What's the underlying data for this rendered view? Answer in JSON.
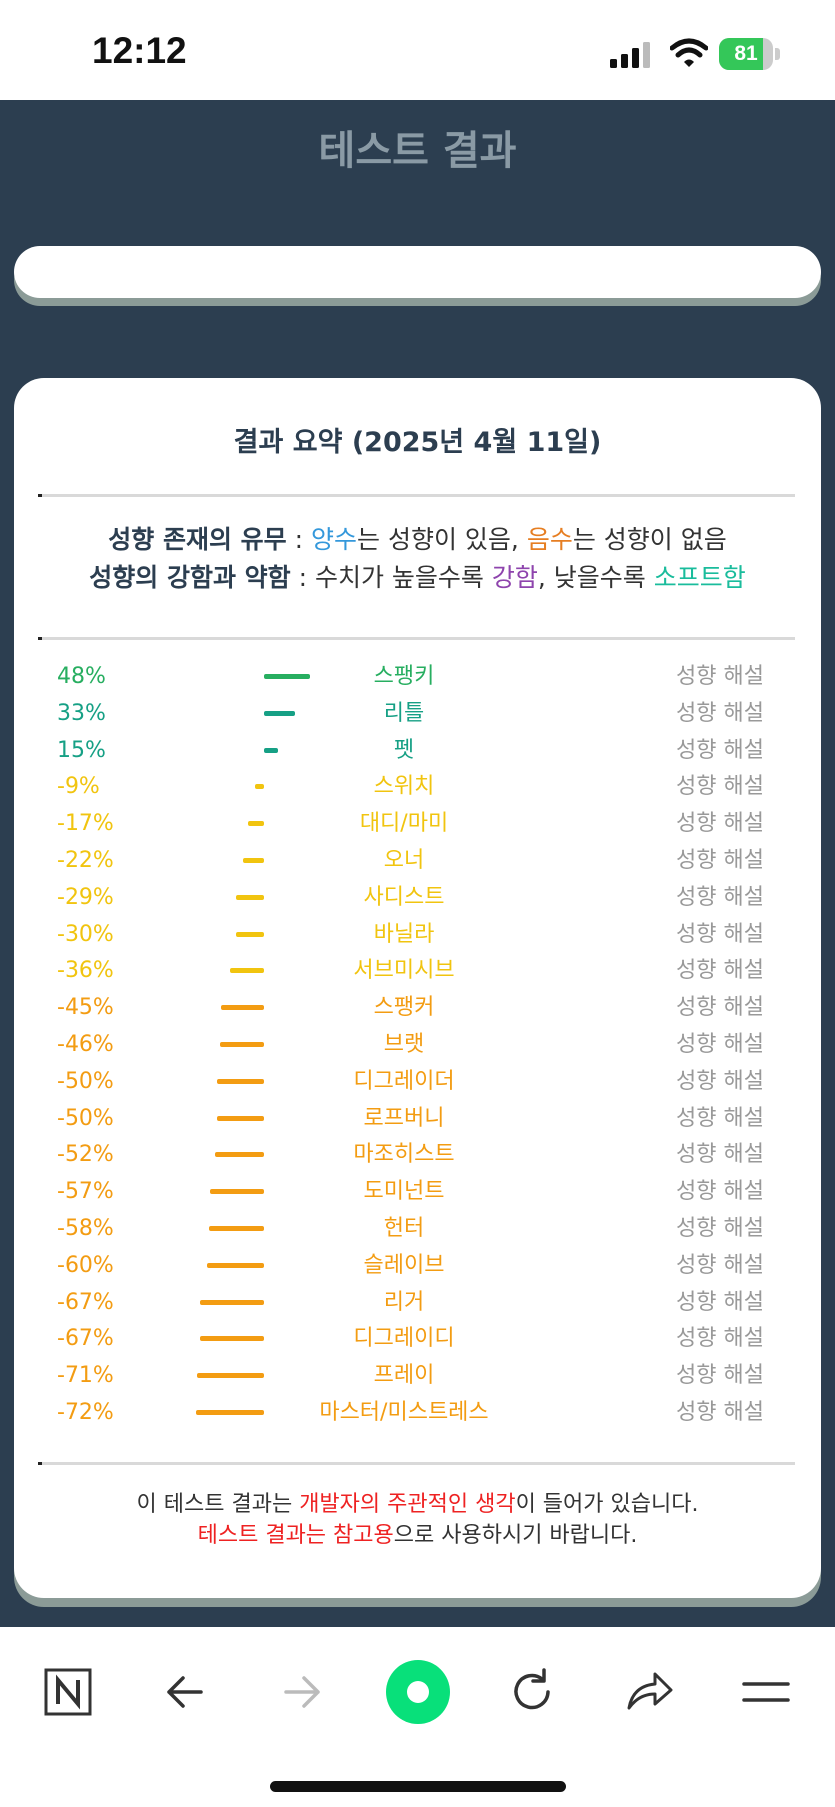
{
  "status": {
    "time": "12:12",
    "battery": "81",
    "battery_level": 0.81
  },
  "header": {
    "title": "테스트 결과"
  },
  "summary": {
    "title": "결과 요약 (2025년 4월 11일)",
    "legend1": {
      "label": "성향 존재의 유무",
      "sep": " : ",
      "pos": "양수",
      "t1": "는 성향이 있음, ",
      "neg": "음수",
      "t2": "는 성향이 없음"
    },
    "legend2": {
      "label": "성향의 강함과 약함",
      "sep": " : 수치가 높을수록 ",
      "strong": "강함",
      "t1": ", 낮을수록 ",
      "soft": "소프트함"
    }
  },
  "explain_label": "성향 해설",
  "results": [
    {
      "pct": "48%",
      "value": 48,
      "name": "스팽키",
      "color": "#27ae60"
    },
    {
      "pct": "33%",
      "value": 33,
      "name": "리틀",
      "color": "#16a085"
    },
    {
      "pct": "15%",
      "value": 15,
      "name": "펫",
      "color": "#16a085"
    },
    {
      "pct": "-9%",
      "value": -9,
      "name": "스위치",
      "color": "#f1c40f"
    },
    {
      "pct": "-17%",
      "value": -17,
      "name": "대디/마미",
      "color": "#f1c40f"
    },
    {
      "pct": "-22%",
      "value": -22,
      "name": "오너",
      "color": "#f1c40f"
    },
    {
      "pct": "-29%",
      "value": -29,
      "name": "사디스트",
      "color": "#f1c40f"
    },
    {
      "pct": "-30%",
      "value": -30,
      "name": "바닐라",
      "color": "#f1c40f"
    },
    {
      "pct": "-36%",
      "value": -36,
      "name": "서브미시브",
      "color": "#f1c40f"
    },
    {
      "pct": "-45%",
      "value": -45,
      "name": "스팽커",
      "color": "#f39c12"
    },
    {
      "pct": "-46%",
      "value": -46,
      "name": "브랫",
      "color": "#f39c12"
    },
    {
      "pct": "-50%",
      "value": -50,
      "name": "디그레이더",
      "color": "#f39c12"
    },
    {
      "pct": "-50%",
      "value": -50,
      "name": "로프버니",
      "color": "#f39c12"
    },
    {
      "pct": "-52%",
      "value": -52,
      "name": "마조히스트",
      "color": "#f39c12"
    },
    {
      "pct": "-57%",
      "value": -57,
      "name": "도미넌트",
      "color": "#f39c12"
    },
    {
      "pct": "-58%",
      "value": -58,
      "name": "헌터",
      "color": "#f39c12"
    },
    {
      "pct": "-60%",
      "value": -60,
      "name": "슬레이브",
      "color": "#f39c12"
    },
    {
      "pct": "-67%",
      "value": -67,
      "name": "리거",
      "color": "#f39c12"
    },
    {
      "pct": "-67%",
      "value": -67,
      "name": "디그레이디",
      "color": "#f39c12"
    },
    {
      "pct": "-71%",
      "value": -71,
      "name": "프레이",
      "color": "#f39c12"
    },
    {
      "pct": "-72%",
      "value": -72,
      "name": "마스터/미스트레스",
      "color": "#f39c12"
    }
  ],
  "footer": {
    "l1a": "이 테스트 결과는 ",
    "l1b": "개발자의 주관적인 생각",
    "l1c": "이 들어가 있습니다.",
    "l2a": "테스트 결과는 참고용",
    "l2b": "으로 사용하시기 바랍니다."
  },
  "colors": {
    "positive": "#3498db",
    "negative": "#e67e22",
    "strong": "#8e44ad",
    "soft": "#1abc9c"
  },
  "toolbar": {
    "icons": [
      "naver-n-icon",
      "back-arrow-icon",
      "forward-arrow-icon",
      "green-dot-icon",
      "refresh-icon",
      "share-icon",
      "menu-icon"
    ]
  }
}
